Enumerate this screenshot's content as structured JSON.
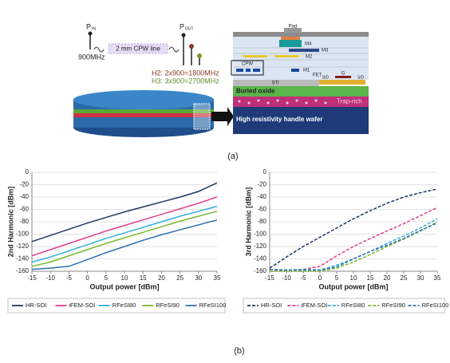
{
  "diagram": {
    "p_in": "P",
    "p_in_sub": "IN",
    "freq_in": "900MHz",
    "cpw_line": "2 mm CPW line",
    "p_out": "P",
    "p_out_sub": "OUT",
    "h2": "H2: 2x900=1800MHz",
    "h3": "H3: 3x900=2700MHz",
    "pad": "Pad",
    "m4": "M4",
    "m3": "M3",
    "m2": "M2",
    "cpw": "CPW",
    "m1": "M1",
    "fet": "FET",
    "gate": "G",
    "sd_left": "S/D",
    "sd_right": "S/D",
    "sti": "STI",
    "buried_oxide": "Buried oxide",
    "trap_rich": "Trap-rich",
    "handle_wafer": "High resistivity handle wafer",
    "caption": "(a)"
  },
  "caption_b": "(b)",
  "chart_data": [
    {
      "type": "line",
      "ylabel": "2nd Harmonic [dBm]",
      "xlabel": "Output power [dBm]",
      "x": [
        -15,
        -10,
        -5,
        0,
        5,
        10,
        15,
        20,
        25,
        30,
        35
      ],
      "xlim": [
        -15,
        35
      ],
      "xticks": [
        -15,
        -10,
        -5,
        0,
        5,
        10,
        15,
        20,
        25,
        30,
        35
      ],
      "ylim": [
        -160,
        0
      ],
      "yticks": [
        0,
        -20,
        -40,
        -60,
        -80,
        -100,
        -120,
        -140,
        -160
      ],
      "grid": true,
      "dashed": false,
      "legend": "bottom",
      "series": [
        {
          "name": "HR-SOI",
          "color": "#1f3864",
          "values": [
            -112,
            -102,
            -92,
            -82,
            -73,
            -64,
            -56,
            -48,
            -40,
            -31,
            -17
          ]
        },
        {
          "name": "iFEM-SOI",
          "color": "#e0408a",
          "values": [
            -135,
            -125,
            -115,
            -105,
            -95,
            -86,
            -77,
            -68,
            -59,
            -50,
            -40
          ]
        },
        {
          "name": "RFeSI80",
          "color": "#33b0e0",
          "values": [
            -145,
            -137,
            -127,
            -117,
            -107,
            -98,
            -89,
            -80,
            -71,
            -63,
            -55
          ]
        },
        {
          "name": "RFeSI90",
          "color": "#7ab830",
          "values": [
            -152,
            -145,
            -135,
            -125,
            -115,
            -106,
            -97,
            -88,
            -79,
            -71,
            -63
          ]
        },
        {
          "name": "RFeSI100",
          "color": "#3070b0",
          "values": [
            -157,
            -155,
            -152,
            -141,
            -130,
            -120,
            -110,
            -101,
            -93,
            -85,
            -77
          ]
        }
      ]
    },
    {
      "type": "line",
      "ylabel": "3rd Harmonic [dBm]",
      "xlabel": "Output power [dBm]",
      "x": [
        -15,
        -10,
        -5,
        0,
        5,
        10,
        15,
        20,
        25,
        30,
        35
      ],
      "xlim": [
        -15,
        35
      ],
      "xticks": [
        -15,
        -10,
        -5,
        0,
        5,
        10,
        15,
        20,
        25,
        30,
        35
      ],
      "ylim": [
        -160,
        0
      ],
      "yticks": [
        0,
        -20,
        -40,
        -60,
        -80,
        -100,
        -120,
        -140,
        -160
      ],
      "grid": true,
      "dashed": true,
      "legend": "bottom",
      "series": [
        {
          "name": "HR-SOI",
          "color": "#1f3864",
          "values": [
            -155,
            -137,
            -120,
            -105,
            -90,
            -75,
            -62,
            -50,
            -40,
            -33,
            -27
          ]
        },
        {
          "name": "iFEM-SOI",
          "color": "#e0408a",
          "values": [
            -160,
            -158,
            -157,
            -152,
            -135,
            -120,
            -107,
            -95,
            -83,
            -70,
            -57
          ]
        },
        {
          "name": "RFeSI80",
          "color": "#33b0e0",
          "values": [
            -157,
            -158,
            -157,
            -158,
            -150,
            -140,
            -128,
            -115,
            -103,
            -90,
            -75
          ]
        },
        {
          "name": "RFeSI90",
          "color": "#7ab830",
          "values": [
            -160,
            -160,
            -160,
            -160,
            -155,
            -145,
            -133,
            -120,
            -108,
            -95,
            -80
          ]
        },
        {
          "name": "RFeSI100",
          "color": "#3070b0",
          "values": [
            -157,
            -158,
            -158,
            -158,
            -153,
            -140,
            -128,
            -118,
            -107,
            -94,
            -82
          ]
        }
      ]
    }
  ]
}
